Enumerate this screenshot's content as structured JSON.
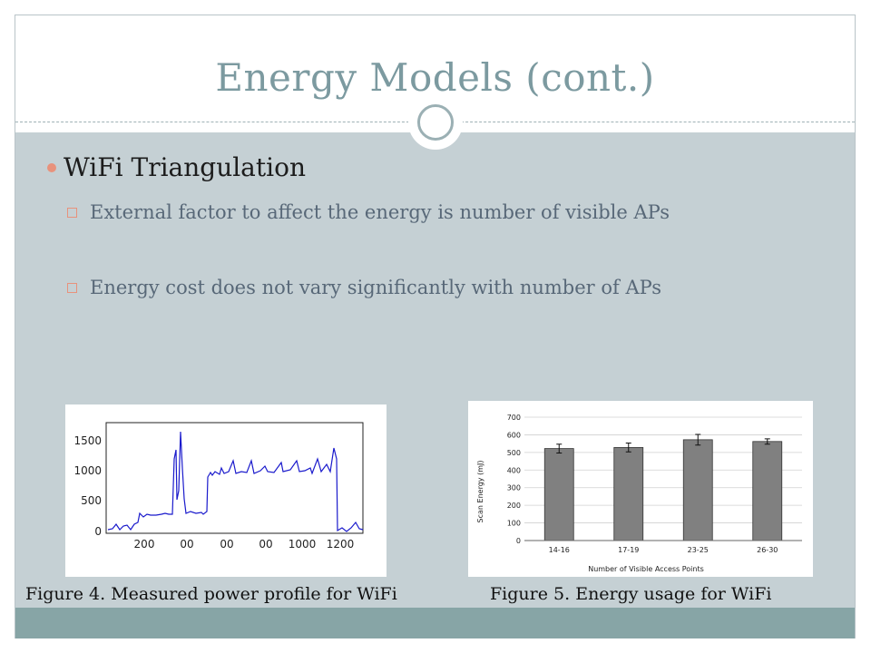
{
  "slide": {
    "title": "Energy Models (cont.)",
    "bullet": "WiFi Triangulation",
    "sub_bullets": [
      "External factor to affect the energy is number of visible APs",
      "Energy cost does not vary significantly with number of APs"
    ]
  },
  "figure4": {
    "caption": "Figure 4. Measured power profile for WiFi",
    "y_ticks": [
      "1500",
      "1000",
      "500",
      "0"
    ],
    "x_ticks": [
      "200",
      "00",
      "00",
      "00",
      "1000",
      "1200"
    ],
    "line_color": "#1a1acc"
  },
  "figure5": {
    "caption": "Figure 5. Energy usage for WiFi",
    "y_ticks": [
      "700",
      "600",
      "500",
      "400",
      "300",
      "200",
      "100",
      "0"
    ]
  },
  "chart_data": {
    "type": "bar",
    "categories": [
      "14-16",
      "17-19",
      "23-25",
      "26-30"
    ],
    "series": [
      {
        "values": [
          522,
          528,
          572,
          562
        ]
      }
    ],
    "errors": [
      25,
      25,
      30,
      15
    ],
    "xlabel": "Number of Visible Access Points",
    "ylabel": "Scan Energy (mJ)",
    "ylim": [
      0,
      700
    ],
    "grid": true,
    "bar_color": "#808080"
  }
}
